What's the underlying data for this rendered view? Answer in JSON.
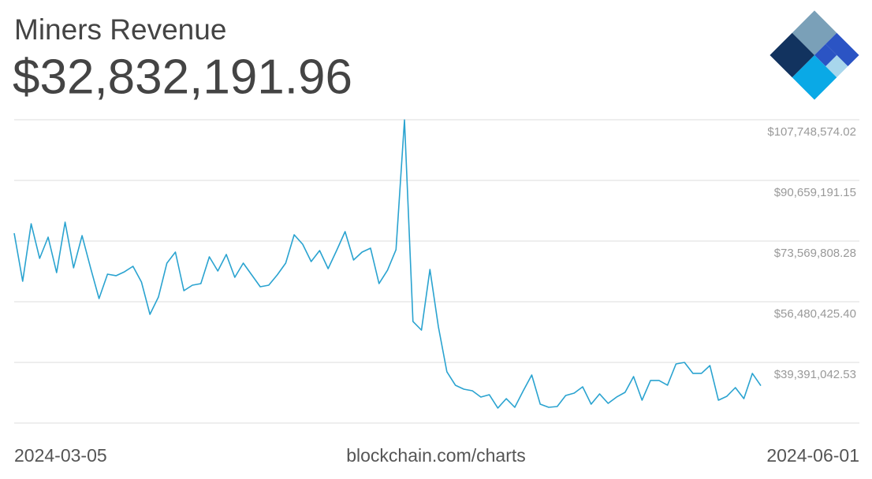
{
  "chart_data": {
    "type": "line",
    "title": "Miners Revenue",
    "headline": "$32,832,191.96",
    "source": "blockchain.com/charts",
    "x": [
      "2024-03-05",
      "2024-03-06",
      "2024-03-07",
      "2024-03-08",
      "2024-03-09",
      "2024-03-10",
      "2024-03-11",
      "2024-03-12",
      "2024-03-13",
      "2024-03-14",
      "2024-03-15",
      "2024-03-16",
      "2024-03-17",
      "2024-03-18",
      "2024-03-19",
      "2024-03-20",
      "2024-03-21",
      "2024-03-22",
      "2024-03-23",
      "2024-03-24",
      "2024-03-25",
      "2024-03-26",
      "2024-03-27",
      "2024-03-28",
      "2024-03-29",
      "2024-03-30",
      "2024-03-31",
      "2024-04-01",
      "2024-04-02",
      "2024-04-03",
      "2024-04-04",
      "2024-04-05",
      "2024-04-06",
      "2024-04-07",
      "2024-04-08",
      "2024-04-09",
      "2024-04-10",
      "2024-04-11",
      "2024-04-12",
      "2024-04-13",
      "2024-04-14",
      "2024-04-15",
      "2024-04-16",
      "2024-04-17",
      "2024-04-18",
      "2024-04-19",
      "2024-04-20",
      "2024-04-21",
      "2024-04-22",
      "2024-04-23",
      "2024-04-24",
      "2024-04-25",
      "2024-04-26",
      "2024-04-27",
      "2024-04-28",
      "2024-04-29",
      "2024-04-30",
      "2024-05-01",
      "2024-05-02",
      "2024-05-03",
      "2024-05-04",
      "2024-05-05",
      "2024-05-06",
      "2024-05-07",
      "2024-05-08",
      "2024-05-09",
      "2024-05-10",
      "2024-05-11",
      "2024-05-12",
      "2024-05-13",
      "2024-05-14",
      "2024-05-15",
      "2024-05-16",
      "2024-05-17",
      "2024-05-18",
      "2024-05-19",
      "2024-05-20",
      "2024-05-21",
      "2024-05-22",
      "2024-05-23",
      "2024-05-24",
      "2024-05-25",
      "2024-05-26",
      "2024-05-27",
      "2024-05-28",
      "2024-05-29",
      "2024-05-30",
      "2024-05-31",
      "2024-06-01"
    ],
    "series": [
      {
        "name": "Miners Revenue",
        "color": "#2aa3d0",
        "values": [
          75790000,
          62250000,
          78450000,
          68690000,
          74680000,
          64690000,
          78900000,
          66030000,
          75120000,
          66030000,
          57370000,
          64250000,
          63810000,
          64920000,
          66470000,
          62030000,
          52930000,
          57810000,
          67360000,
          70460000,
          59590000,
          61140000,
          61590000,
          69130000,
          65140000,
          69800000,
          63360000,
          67360000,
          64030000,
          60700000,
          61140000,
          64030000,
          67360000,
          75350000,
          72680000,
          67800000,
          70910000,
          65800000,
          70910000,
          76230000,
          68240000,
          70460000,
          71570000,
          61590000,
          65360000,
          71130000,
          107700000,
          50930000,
          48490000,
          65580000,
          49380000,
          36730000,
          32960000,
          31850000,
          31400000,
          29630000,
          30290000,
          26520000,
          29180000,
          26740000,
          31400000,
          35840000,
          27630000,
          26740000,
          26960000,
          30070000,
          30740000,
          32510000,
          27630000,
          30510000,
          27850000,
          29630000,
          30960000,
          35400000,
          28740000,
          34290000,
          34290000,
          32960000,
          38950000,
          39390000,
          36290000,
          36290000,
          38500000,
          28740000,
          29850000,
          32290000,
          29180000,
          36290000,
          32832191.96
        ]
      }
    ],
    "ylim": [
      22301659.66,
      107748574.02
    ],
    "yticks": [
      {
        "value": 39391042.53,
        "label": "$39,391,042.53"
      },
      {
        "value": 56480425.4,
        "label": "$56,480,425.40"
      },
      {
        "value": 73569808.28,
        "label": "$73,569,808.28"
      },
      {
        "value": 90659191.15,
        "label": "$90,659,191.15"
      },
      {
        "value": 107748574.02,
        "label": "$107,748,574.02"
      }
    ],
    "grid": true
  }
}
